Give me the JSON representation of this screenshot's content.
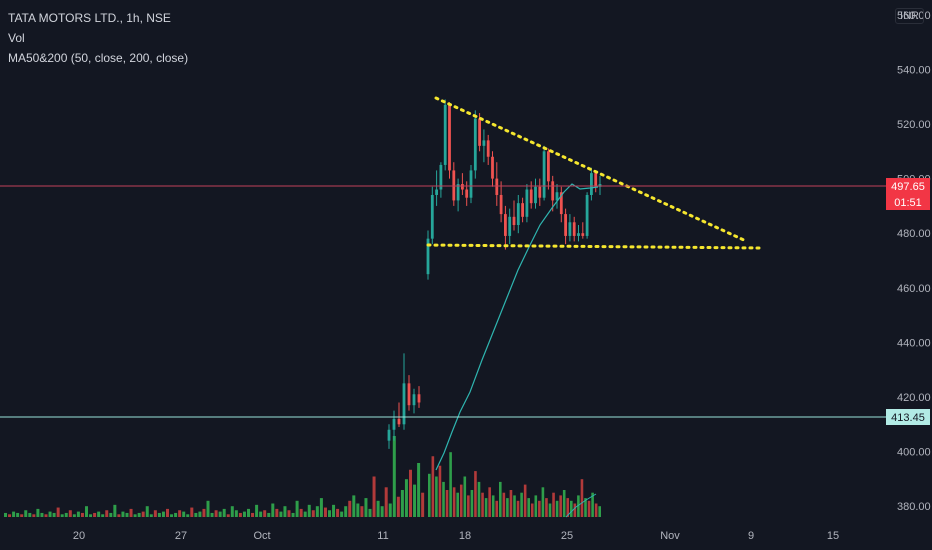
{
  "header": {
    "symbol_line": "TATA MOTORS LTD., 1h, NSE",
    "volume_label": "Vol",
    "ma_label": "MA50&200 (50, close, 200, close)"
  },
  "currency": "INR",
  "colors": {
    "background": "#131722",
    "up": "#26a69a",
    "down": "#ef5350",
    "vol_up": "#2e9e4a",
    "vol_down": "#b23a3a",
    "ma": "#2fb5b0",
    "pattern": "#f5e62e",
    "price_line": "#c2405a",
    "level_line": "#9ae3d9"
  },
  "badges": {
    "last_price": "497.65",
    "countdown": "01:51",
    "level": "413.45"
  },
  "chart_data": {
    "type": "candlestick",
    "title": "TATA MOTORS LTD., 1h, NSE",
    "ylim": [
      376,
      560
    ],
    "y_ticks": [
      "380.00",
      "400.00",
      "420.00",
      "440.00",
      "460.00",
      "480.00",
      "500.00",
      "520.00",
      "540.00",
      "560.00"
    ],
    "x_ticks": [
      "20",
      "27",
      "Oct",
      "11",
      "18",
      "25",
      "Nov",
      "9",
      "15"
    ],
    "candles": [
      {
        "o": 465,
        "h": 481,
        "l": 463,
        "c": 478
      },
      {
        "o": 478,
        "h": 497,
        "l": 476,
        "c": 494
      },
      {
        "o": 494,
        "h": 503,
        "l": 490,
        "c": 496
      },
      {
        "o": 496,
        "h": 506,
        "l": 493,
        "c": 505
      },
      {
        "o": 505,
        "h": 529,
        "l": 503,
        "c": 527
      },
      {
        "o": 527,
        "h": 528,
        "l": 500,
        "c": 503
      },
      {
        "o": 503,
        "h": 506,
        "l": 490,
        "c": 492
      },
      {
        "o": 492,
        "h": 500,
        "l": 488,
        "c": 498
      },
      {
        "o": 498,
        "h": 502,
        "l": 494,
        "c": 496
      },
      {
        "o": 496,
        "h": 499,
        "l": 490,
        "c": 493
      },
      {
        "o": 493,
        "h": 505,
        "l": 491,
        "c": 503
      },
      {
        "o": 503,
        "h": 525,
        "l": 500,
        "c": 522
      },
      {
        "o": 522,
        "h": 524,
        "l": 510,
        "c": 512
      },
      {
        "o": 512,
        "h": 518,
        "l": 506,
        "c": 514
      },
      {
        "o": 514,
        "h": 516,
        "l": 505,
        "c": 508
      },
      {
        "o": 508,
        "h": 510,
        "l": 497,
        "c": 500
      },
      {
        "o": 500,
        "h": 506,
        "l": 490,
        "c": 494
      },
      {
        "o": 494,
        "h": 499,
        "l": 484,
        "c": 487
      },
      {
        "o": 487,
        "h": 490,
        "l": 474,
        "c": 479
      },
      {
        "o": 479,
        "h": 489,
        "l": 476,
        "c": 486
      },
      {
        "o": 486,
        "h": 492,
        "l": 481,
        "c": 483
      },
      {
        "o": 483,
        "h": 494,
        "l": 480,
        "c": 491
      },
      {
        "o": 491,
        "h": 493,
        "l": 484,
        "c": 486
      },
      {
        "o": 486,
        "h": 498,
        "l": 484,
        "c": 496
      },
      {
        "o": 496,
        "h": 499,
        "l": 489,
        "c": 491
      },
      {
        "o": 491,
        "h": 500,
        "l": 489,
        "c": 497
      },
      {
        "o": 497,
        "h": 500,
        "l": 490,
        "c": 493
      },
      {
        "o": 493,
        "h": 512,
        "l": 492,
        "c": 510
      },
      {
        "o": 510,
        "h": 511,
        "l": 496,
        "c": 499
      },
      {
        "o": 499,
        "h": 501,
        "l": 488,
        "c": 492
      },
      {
        "o": 492,
        "h": 498,
        "l": 489,
        "c": 495
      },
      {
        "o": 495,
        "h": 497,
        "l": 484,
        "c": 487
      },
      {
        "o": 487,
        "h": 489,
        "l": 476,
        "c": 479
      },
      {
        "o": 479,
        "h": 487,
        "l": 477,
        "c": 484
      },
      {
        "o": 484,
        "h": 486,
        "l": 477,
        "c": 479
      },
      {
        "o": 479,
        "h": 483,
        "l": 477,
        "c": 480
      },
      {
        "o": 480,
        "h": 484,
        "l": 478,
        "c": 479
      },
      {
        "o": 479,
        "h": 495,
        "l": 478,
        "c": 494
      },
      {
        "o": 494,
        "h": 504,
        "l": 492,
        "c": 502
      },
      {
        "o": 502,
        "h": 503,
        "l": 495,
        "c": 497
      },
      {
        "o": 497,
        "h": 501,
        "l": 494,
        "c": 498
      }
    ],
    "pre_gap_candles": [
      {
        "o": 404,
        "h": 410,
        "l": 401,
        "c": 408
      },
      {
        "o": 408,
        "h": 415,
        "l": 404,
        "c": 412
      },
      {
        "o": 412,
        "h": 418,
        "l": 409,
        "c": 410
      },
      {
        "o": 410,
        "h": 436,
        "l": 408,
        "c": 425
      },
      {
        "o": 425,
        "h": 428,
        "l": 415,
        "c": 417
      },
      {
        "o": 417,
        "h": 423,
        "l": 414,
        "c": 421
      },
      {
        "o": 421,
        "h": 424,
        "l": 416,
        "c": 418
      }
    ],
    "volume_max": 100,
    "volumes_early": [
      3,
      2,
      4,
      3,
      2,
      5,
      3,
      2,
      6,
      3,
      2,
      4,
      3,
      7,
      2,
      3,
      5,
      2,
      4,
      3,
      8,
      2,
      3,
      4,
      2,
      5,
      3,
      9,
      2,
      4,
      3,
      6,
      2,
      3,
      4,
      8,
      2,
      5,
      3,
      4,
      6,
      2,
      3,
      5,
      4,
      2,
      7,
      3,
      4,
      6,
      12,
      3,
      5,
      4,
      6,
      2,
      8,
      5,
      3,
      4,
      6,
      3,
      9,
      4,
      5,
      3,
      10,
      6,
      4,
      8,
      5,
      3,
      12,
      6,
      4,
      9,
      5,
      8,
      14,
      7,
      5,
      9,
      6,
      4,
      8,
      12,
      16,
      10,
      8,
      14,
      6,
      30,
      12,
      8,
      22,
      10,
      60,
      15,
      20,
      28,
      35,
      24,
      40,
      18
    ],
    "volumes_late": [
      32,
      45,
      30,
      38,
      26,
      20,
      48,
      22,
      18,
      24,
      30,
      16,
      20,
      34,
      26,
      18,
      14,
      22,
      16,
      12,
      26,
      18,
      14,
      20,
      16,
      12,
      18,
      24,
      14,
      10,
      16,
      12,
      22,
      14,
      10,
      18,
      12,
      16,
      20,
      14,
      12,
      10,
      16,
      28,
      14,
      12,
      18,
      10,
      8
    ],
    "ma_label_short": "MA50&200"
  }
}
